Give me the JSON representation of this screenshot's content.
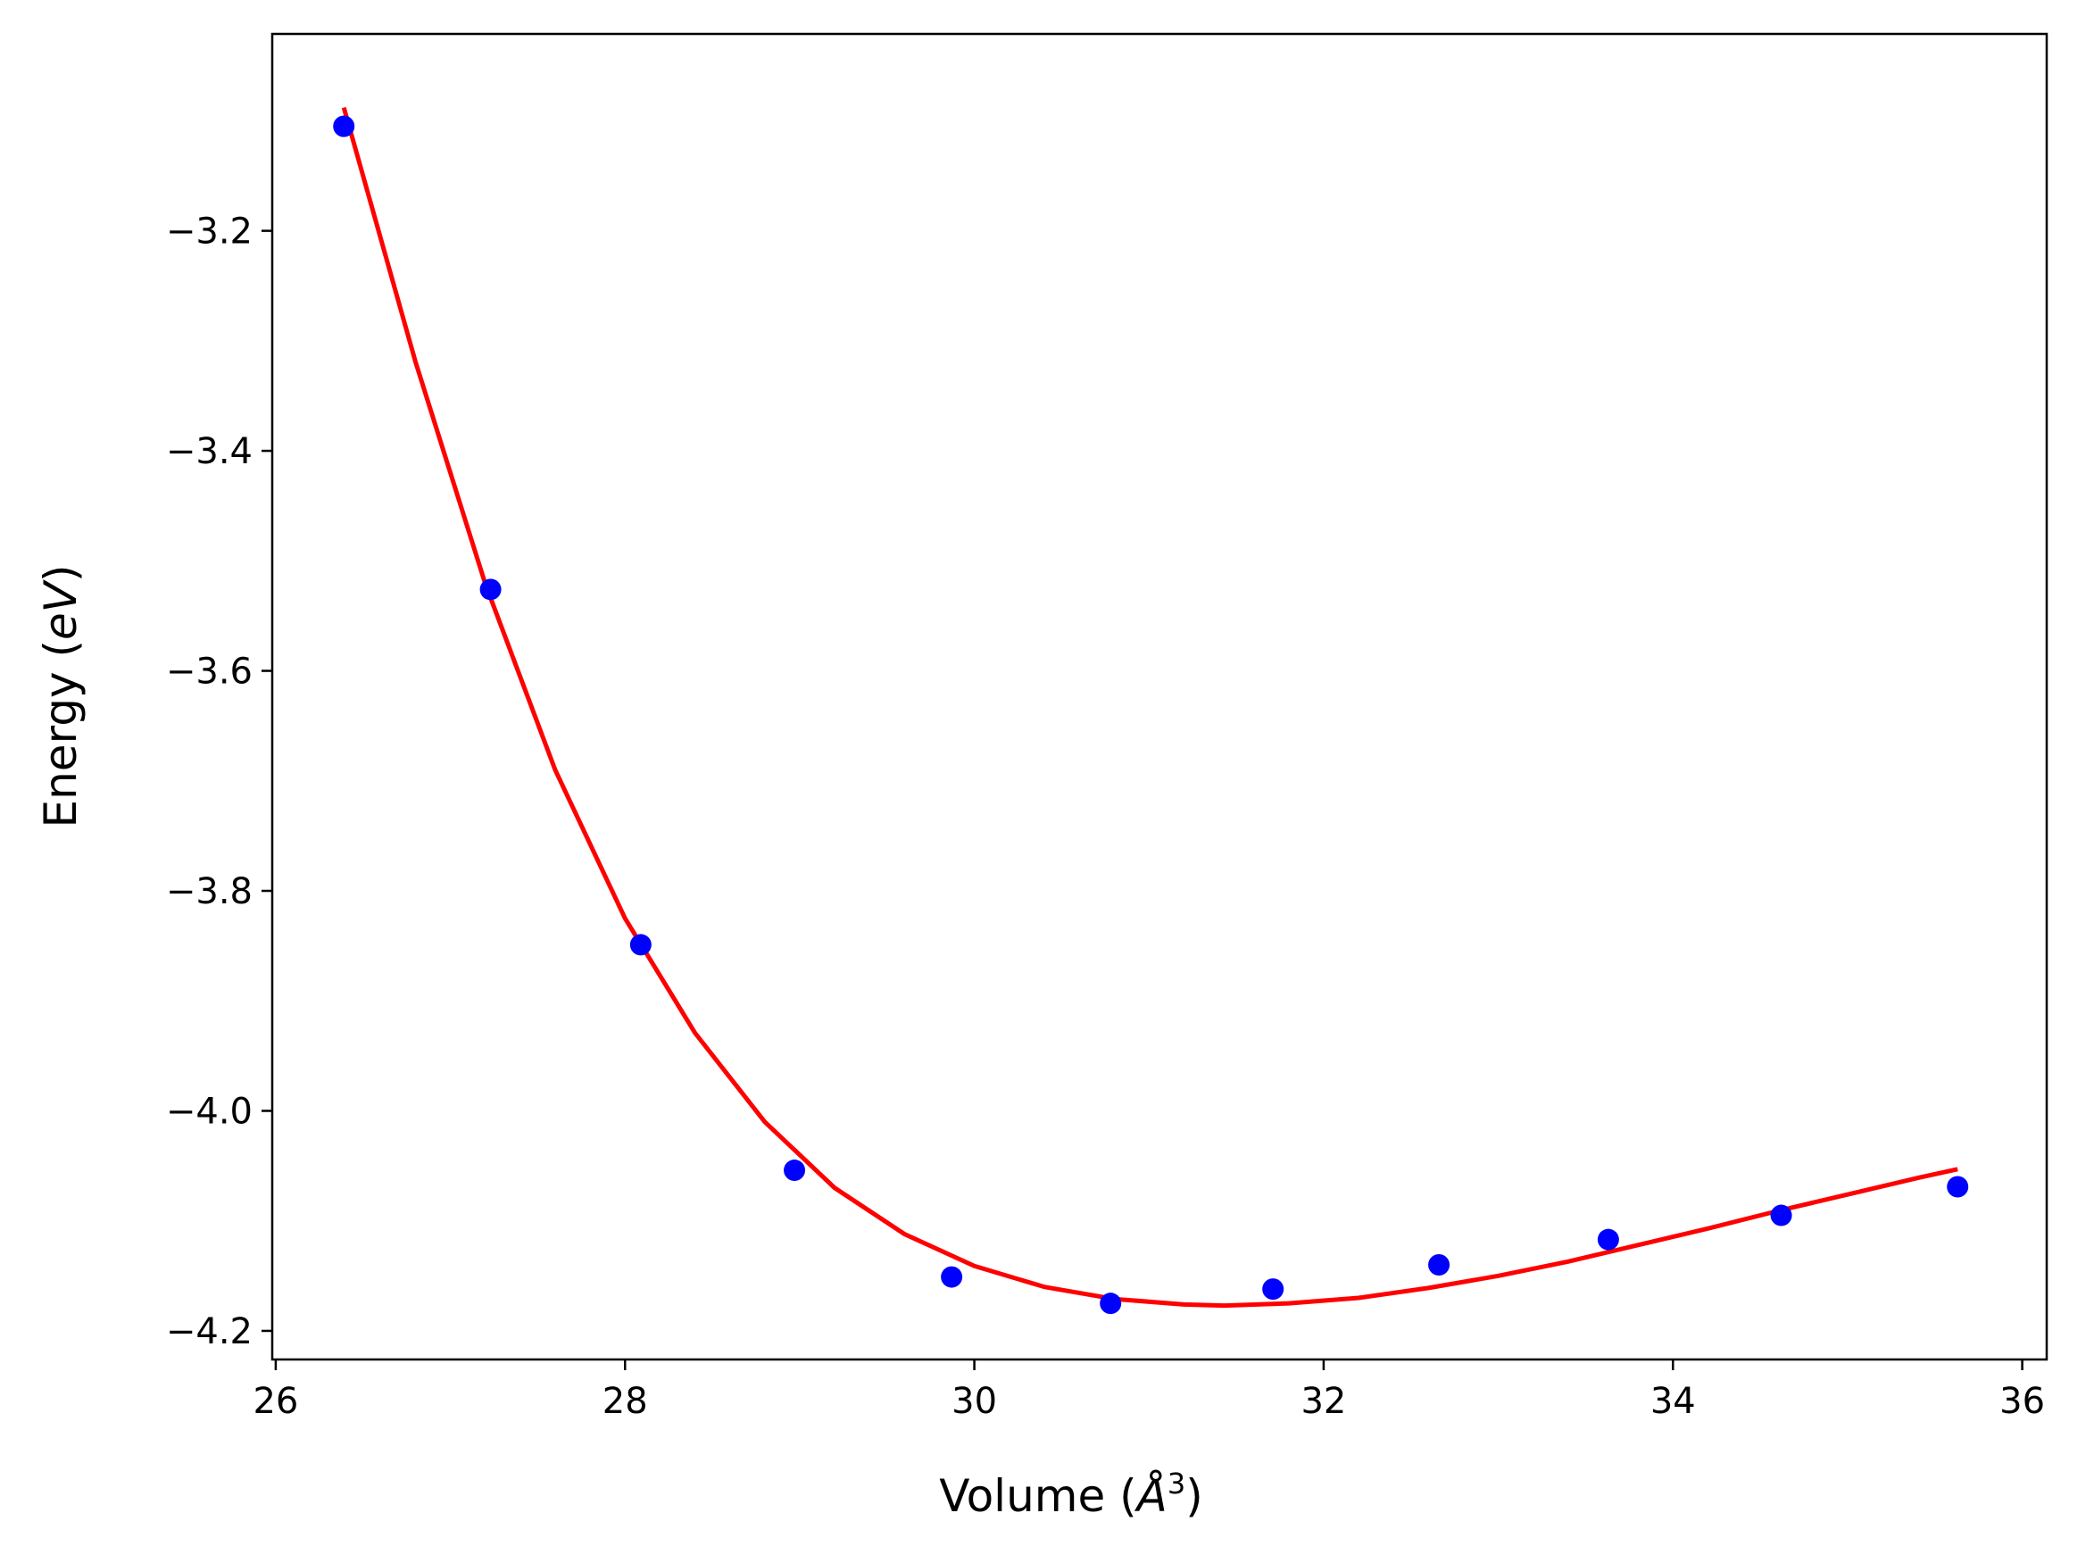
{
  "chart_data": {
    "type": "scatter",
    "title": "",
    "xlabel": {
      "main": "Volume (",
      "italic": "Å",
      "sup": "3",
      "close": ")"
    },
    "ylabel": {
      "main": "Energy (",
      "italic": "eV",
      "close": ")"
    },
    "xlim": [
      25.98,
      36.14
    ],
    "ylim": [
      -4.226,
      -3.021
    ],
    "xticks": [
      26,
      28,
      30,
      32,
      34,
      36
    ],
    "xtick_labels": [
      "26",
      "28",
      "30",
      "32",
      "34",
      "36"
    ],
    "yticks": [
      -3.2,
      -3.4,
      -3.6,
      -3.8,
      -4.0,
      -4.2
    ],
    "ytick_labels": [
      "−3.2",
      "−3.4",
      "−3.6",
      "−3.8",
      "−4.0",
      "−4.2"
    ],
    "grid": false,
    "legend": "none",
    "series": [
      {
        "kind": "points",
        "color": "#0000ff",
        "x": [
          26.39,
          27.23,
          28.09,
          28.97,
          29.87,
          30.78,
          31.71,
          32.66,
          33.63,
          34.62,
          35.63
        ],
        "y": [
          -3.105,
          -3.526,
          -3.849,
          -4.054,
          -4.151,
          -4.175,
          -4.162,
          -4.14,
          -4.117,
          -4.095,
          -4.069
        ]
      },
      {
        "kind": "fit-line",
        "color": "#ff0000",
        "x": [
          26.39,
          26.8,
          27.2,
          27.6,
          28.0,
          28.4,
          28.8,
          29.2,
          29.6,
          30.0,
          30.4,
          30.8,
          31.2,
          31.43,
          31.8,
          32.2,
          32.6,
          33.0,
          33.4,
          33.8,
          34.2,
          34.6,
          35.0,
          35.4,
          35.63
        ],
        "y": [
          -3.088,
          -3.319,
          -3.521,
          -3.69,
          -3.825,
          -3.929,
          -4.01,
          -4.07,
          -4.112,
          -4.141,
          -4.16,
          -4.171,
          -4.176,
          -4.177,
          -4.175,
          -4.17,
          -4.161,
          -4.15,
          -4.137,
          -4.122,
          -4.107,
          -4.091,
          -4.076,
          -4.061,
          -4.053
        ]
      }
    ]
  }
}
